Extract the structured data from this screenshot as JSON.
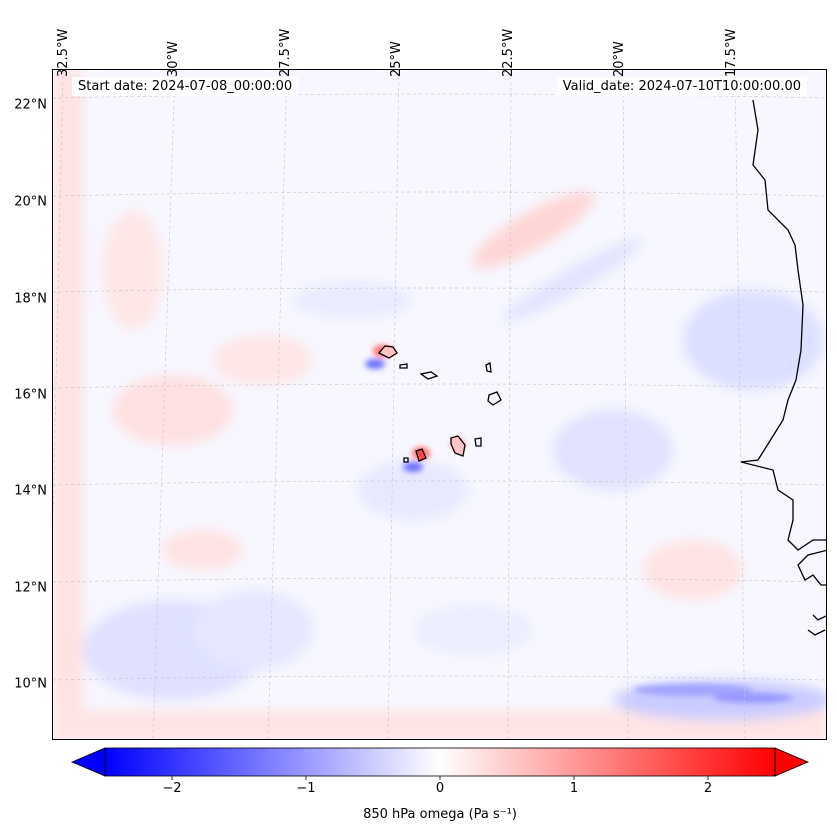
{
  "title": {
    "start_date": "Start date: 2024-07-08_00:00:00",
    "valid_date": "Valid_date: 2024-07-10T10:00:00.00"
  },
  "map": {
    "projection_extent": {
      "lon_min": -33.0,
      "lon_max": -15.5,
      "lat_min": 8.8,
      "lat_max": 22.8
    },
    "lat_ticks": [
      {
        "value": 22,
        "label": "22°N"
      },
      {
        "value": 20,
        "label": "20°N"
      },
      {
        "value": 18,
        "label": "18°N"
      },
      {
        "value": 16,
        "label": "16°N"
      },
      {
        "value": 14,
        "label": "14°N"
      },
      {
        "value": 12,
        "label": "12°N"
      },
      {
        "value": 10,
        "label": "10°N"
      }
    ],
    "lon_ticks": [
      {
        "value": -32.5,
        "label": "32.5°W"
      },
      {
        "value": -30.0,
        "label": "30°W"
      },
      {
        "value": -27.5,
        "label": "27.5°W"
      },
      {
        "value": -25.0,
        "label": "25°W"
      },
      {
        "value": -22.5,
        "label": "22.5°W"
      },
      {
        "value": -20.0,
        "label": "20°W"
      },
      {
        "value": -17.5,
        "label": "17.5°W"
      }
    ]
  },
  "colorbar": {
    "label": "850 hPa omega (Pa s⁻¹)",
    "vmin": -2.5,
    "vmax": 2.5,
    "ticks": [
      {
        "value": -2,
        "label": "−2"
      },
      {
        "value": -1,
        "label": "−1"
      },
      {
        "value": 0,
        "label": "0"
      },
      {
        "value": 1,
        "label": "1"
      },
      {
        "value": 2,
        "label": "2"
      }
    ],
    "colormap": "bwr",
    "extend": "both"
  },
  "colors": {
    "negative": "#0000ff",
    "neutral": "#ffffff",
    "positive": "#ff0000",
    "coastline": "#000000",
    "gridline": "#c8c8c8"
  }
}
